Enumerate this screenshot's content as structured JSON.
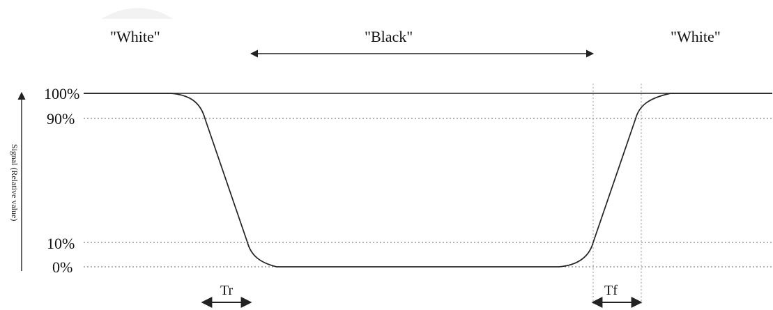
{
  "diagram": {
    "states": {
      "left": "\"White\"",
      "middle": "\"Black\"",
      "right": "\"White\""
    },
    "y_axis": {
      "title": "Signal (Relative value)",
      "ticks": [
        "100%",
        "90%",
        "10%",
        "0%"
      ]
    },
    "time_labels": {
      "rise": "Tr",
      "fall": "Tf"
    }
  }
}
